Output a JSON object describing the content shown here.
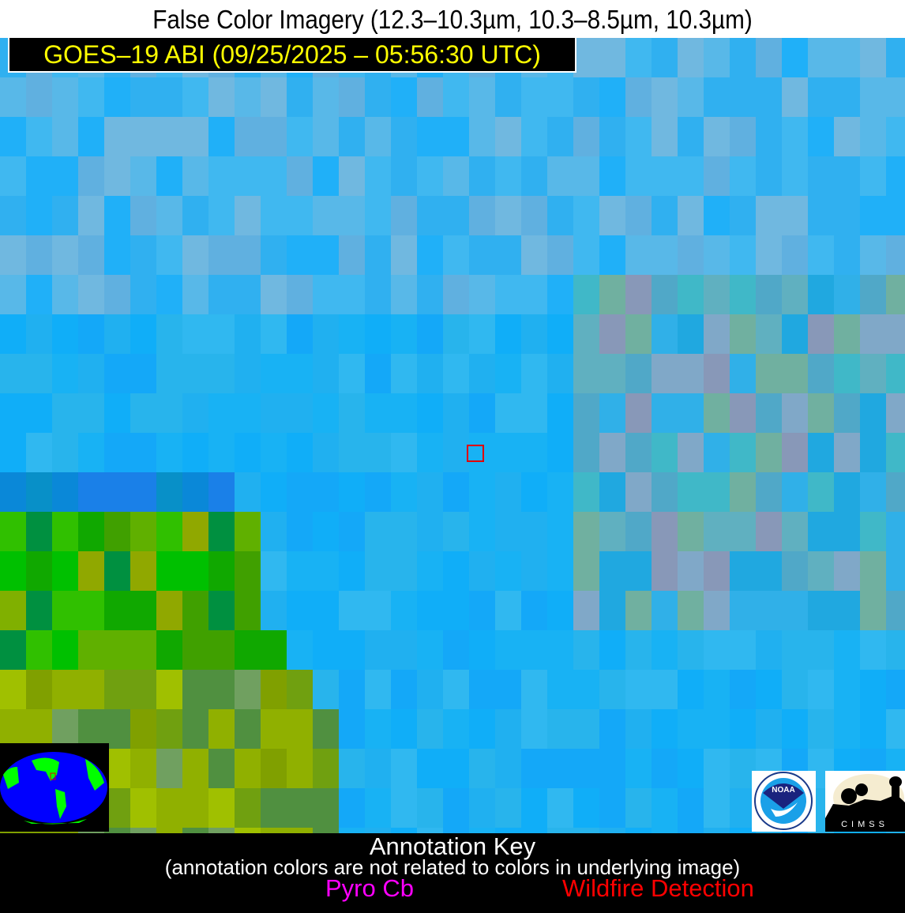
{
  "header": {
    "title": "False Color Imagery (12.3–10.3µm, 10.3–8.5µm, 10.3µm)"
  },
  "satellite_label": "GOES–19 ABI (09/25/2025 – 05:56:30 UTC)",
  "logos": {
    "noaa": "NOAA",
    "cimss": "CIMSS"
  },
  "annotation_key": {
    "title": "Annotation Key",
    "subtitle": "(annotation colors are not related to colors in underlying image)",
    "items": [
      {
        "label": "Pyro Cb",
        "color": "#ff00ff"
      },
      {
        "label": "Wildfire Detection",
        "color": "#ff0000"
      }
    ]
  },
  "colors": {
    "label_text": "#ffff00",
    "target_box": "#e00000",
    "ocean_cloudfree": "#18b2f4",
    "land": "#3cc800"
  }
}
